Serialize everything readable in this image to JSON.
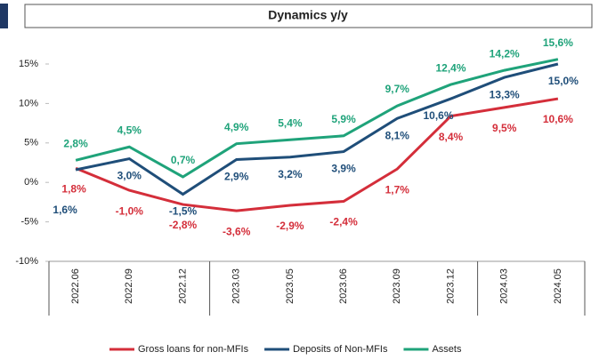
{
  "chart_data": {
    "type": "line",
    "title": "Dynamics y/y",
    "categories": [
      "2022.06",
      "2022.09",
      "2022.12",
      "2023.03",
      "2023.05",
      "2023.06",
      "2023.09",
      "2023.12",
      "2024.03",
      "2024.05"
    ],
    "series": [
      {
        "name": "Gross loans for non-MFIs",
        "color": "#d42e3a",
        "values": [
          1.8,
          -1.0,
          -2.8,
          -3.6,
          -2.9,
          -2.4,
          1.7,
          8.4,
          9.5,
          10.6
        ],
        "value_labels": [
          "1,8%",
          "-1,0%",
          "-2,8%",
          "-3,6%",
          "-2,9%",
          "-2,4%",
          "1,7%",
          "8,4%",
          "9,5%",
          "10,6%"
        ]
      },
      {
        "name": "Deposits of Non-MFIs",
        "color": "#1f4e79",
        "values": [
          1.6,
          3.0,
          -1.5,
          2.9,
          3.2,
          3.9,
          8.1,
          10.6,
          13.3,
          15.0
        ],
        "value_labels": [
          "1,6%",
          "3,0%",
          "-1,5%",
          "2,9%",
          "3,2%",
          "3,9%",
          "8,1%",
          "10,6%",
          "13,3%",
          "15,0%"
        ]
      },
      {
        "name": "Assets",
        "color": "#1fa37a",
        "values": [
          2.8,
          4.5,
          0.7,
          4.9,
          5.4,
          5.9,
          9.7,
          12.4,
          14.2,
          15.6
        ],
        "value_labels": [
          "2,8%",
          "4,5%",
          "0,7%",
          "4,9%",
          "5,4%",
          "5,9%",
          "9,7%",
          "12,4%",
          "14,2%",
          "15,6%"
        ]
      }
    ],
    "ylim": [
      -10,
      15
    ],
    "yticks": [
      {
        "value": -10,
        "label": "-10%"
      },
      {
        "value": -5,
        "label": "-5%"
      },
      {
        "value": 0,
        "label": "0%"
      },
      {
        "value": 5,
        "label": "5%"
      },
      {
        "value": 10,
        "label": "10%"
      },
      {
        "value": 15,
        "label": "15%"
      }
    ],
    "grid": false,
    "legend": "bottom"
  }
}
